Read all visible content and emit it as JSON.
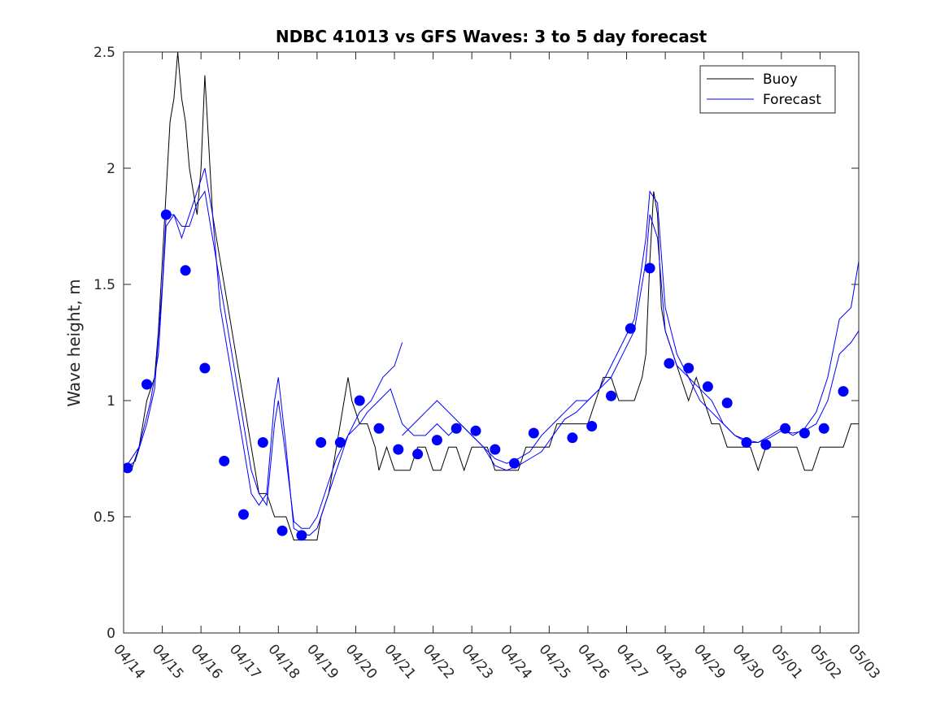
{
  "chart_data": {
    "type": "line",
    "title": "NDBC 41013 vs GFS Waves: 3 to 5 day forecast",
    "ylabel": "Wave height, m",
    "xlabel": "",
    "xlim": [
      0,
      19
    ],
    "ylim": [
      0,
      2.5
    ],
    "yticks": [
      0,
      0.5,
      1,
      1.5,
      2,
      2.5
    ],
    "ytick_labels": [
      "0",
      "0.5",
      "1",
      "1.5",
      "2",
      "2.5"
    ],
    "xtick_labels": [
      "04/14",
      "04/15",
      "04/16",
      "04/17",
      "04/18",
      "04/19",
      "04/20",
      "04/21",
      "04/22",
      "04/23",
      "04/24",
      "04/25",
      "04/26",
      "04/27",
      "04/28",
      "04/29",
      "04/30",
      "05/01",
      "05/02",
      "05/03"
    ],
    "legend_position": "top-right",
    "grid": false,
    "colors": {
      "buoy": "#000000",
      "forecast": "#0000ff",
      "markers": "#0000ff"
    },
    "series": [
      {
        "name": "Buoy",
        "style": "line",
        "points": [
          [
            0.0,
            0.7
          ],
          [
            0.2,
            0.7
          ],
          [
            0.4,
            0.8
          ],
          [
            0.6,
            1.0
          ],
          [
            0.8,
            1.1
          ],
          [
            0.9,
            1.3
          ],
          [
            1.0,
            1.6
          ],
          [
            1.1,
            1.9
          ],
          [
            1.2,
            2.2
          ],
          [
            1.3,
            2.3
          ],
          [
            1.4,
            2.5
          ],
          [
            1.5,
            2.3
          ],
          [
            1.6,
            2.2
          ],
          [
            1.7,
            2.0
          ],
          [
            1.8,
            1.9
          ],
          [
            1.9,
            1.8
          ],
          [
            2.0,
            2.0
          ],
          [
            2.1,
            2.4
          ],
          [
            2.2,
            2.1
          ],
          [
            2.3,
            1.8
          ],
          [
            2.5,
            1.6
          ],
          [
            2.7,
            1.4
          ],
          [
            2.9,
            1.2
          ],
          [
            3.1,
            1.0
          ],
          [
            3.3,
            0.8
          ],
          [
            3.5,
            0.6
          ],
          [
            3.7,
            0.6
          ],
          [
            3.9,
            0.5
          ],
          [
            4.0,
            0.5
          ],
          [
            4.2,
            0.5
          ],
          [
            4.4,
            0.4
          ],
          [
            4.6,
            0.4
          ],
          [
            4.8,
            0.4
          ],
          [
            5.0,
            0.4
          ],
          [
            5.1,
            0.5
          ],
          [
            5.3,
            0.6
          ],
          [
            5.5,
            0.8
          ],
          [
            5.7,
            1.0
          ],
          [
            5.8,
            1.1
          ],
          [
            5.9,
            1.0
          ],
          [
            6.1,
            0.9
          ],
          [
            6.3,
            0.9
          ],
          [
            6.5,
            0.8
          ],
          [
            6.6,
            0.7
          ],
          [
            6.8,
            0.8
          ],
          [
            7.0,
            0.7
          ],
          [
            7.2,
            0.7
          ],
          [
            7.4,
            0.7
          ],
          [
            7.6,
            0.8
          ],
          [
            7.8,
            0.8
          ],
          [
            8.0,
            0.7
          ],
          [
            8.2,
            0.7
          ],
          [
            8.4,
            0.8
          ],
          [
            8.6,
            0.8
          ],
          [
            8.8,
            0.7
          ],
          [
            9.0,
            0.8
          ],
          [
            9.2,
            0.8
          ],
          [
            9.4,
            0.8
          ],
          [
            9.6,
            0.7
          ],
          [
            9.8,
            0.7
          ],
          [
            10.0,
            0.7
          ],
          [
            10.2,
            0.7
          ],
          [
            10.4,
            0.8
          ],
          [
            10.6,
            0.8
          ],
          [
            10.8,
            0.8
          ],
          [
            11.0,
            0.8
          ],
          [
            11.2,
            0.9
          ],
          [
            11.4,
            0.9
          ],
          [
            11.6,
            0.9
          ],
          [
            11.8,
            0.9
          ],
          [
            12.0,
            0.9
          ],
          [
            12.2,
            1.0
          ],
          [
            12.4,
            1.1
          ],
          [
            12.6,
            1.1
          ],
          [
            12.8,
            1.0
          ],
          [
            13.0,
            1.0
          ],
          [
            13.2,
            1.0
          ],
          [
            13.4,
            1.1
          ],
          [
            13.5,
            1.2
          ],
          [
            13.6,
            1.6
          ],
          [
            13.7,
            1.9
          ],
          [
            13.8,
            1.8
          ],
          [
            13.9,
            1.4
          ],
          [
            14.0,
            1.3
          ],
          [
            14.2,
            1.2
          ],
          [
            14.4,
            1.1
          ],
          [
            14.6,
            1.0
          ],
          [
            14.8,
            1.1
          ],
          [
            15.0,
            1.0
          ],
          [
            15.2,
            0.9
          ],
          [
            15.4,
            0.9
          ],
          [
            15.6,
            0.8
          ],
          [
            15.8,
            0.8
          ],
          [
            16.0,
            0.8
          ],
          [
            16.2,
            0.8
          ],
          [
            16.4,
            0.7
          ],
          [
            16.6,
            0.8
          ],
          [
            16.8,
            0.8
          ],
          [
            17.0,
            0.8
          ],
          [
            17.2,
            0.8
          ],
          [
            17.4,
            0.8
          ],
          [
            17.6,
            0.7
          ],
          [
            17.8,
            0.7
          ],
          [
            18.0,
            0.8
          ],
          [
            18.2,
            0.8
          ],
          [
            18.4,
            0.8
          ],
          [
            18.6,
            0.8
          ],
          [
            18.8,
            0.9
          ],
          [
            19.0,
            0.9
          ]
        ]
      },
      {
        "name": "Forecast",
        "style": "line",
        "traces": [
          [
            [
              0.0,
              0.7
            ],
            [
              0.3,
              0.74
            ],
            [
              0.6,
              0.9
            ],
            [
              0.8,
              1.05
            ],
            [
              1.0,
              1.5
            ],
            [
              1.1,
              1.8
            ],
            [
              1.3,
              1.8
            ],
            [
              1.5,
              1.7
            ],
            [
              1.7,
              1.8
            ],
            [
              1.9,
              1.9
            ],
            [
              2.1,
              2.0
            ],
            [
              2.3,
              1.8
            ],
            [
              2.5,
              1.4
            ],
            [
              2.7,
              1.2
            ],
            [
              2.9,
              1.0
            ],
            [
              3.1,
              0.8
            ],
            [
              3.3,
              0.6
            ],
            [
              3.5,
              0.55
            ],
            [
              3.7,
              0.6
            ],
            [
              3.9,
              1.0
            ],
            [
              4.0,
              1.1
            ],
            [
              4.2,
              0.8
            ],
            [
              4.4,
              0.45
            ],
            [
              4.6,
              0.43
            ],
            [
              4.8,
              0.42
            ],
            [
              5.0,
              0.45
            ],
            [
              5.2,
              0.55
            ],
            [
              5.5,
              0.7
            ],
            [
              5.8,
              0.85
            ],
            [
              6.1,
              0.9
            ],
            [
              6.3,
              0.95
            ],
            [
              6.6,
              1.0
            ],
            [
              6.9,
              1.05
            ],
            [
              7.2,
              0.9
            ],
            [
              7.5,
              0.85
            ],
            [
              7.8,
              0.85
            ],
            [
              8.1,
              0.9
            ],
            [
              8.4,
              0.85
            ],
            [
              8.7,
              0.9
            ],
            [
              9.0,
              0.85
            ],
            [
              9.3,
              0.8
            ],
            [
              9.6,
              0.75
            ],
            [
              9.9,
              0.73
            ],
            [
              10.2,
              0.75
            ],
            [
              10.5,
              0.78
            ],
            [
              10.8,
              0.85
            ],
            [
              11.1,
              0.9
            ],
            [
              11.4,
              0.95
            ],
            [
              11.7,
              1.0
            ],
            [
              12.0,
              1.0
            ],
            [
              12.3,
              1.05
            ],
            [
              12.6,
              1.1
            ],
            [
              12.9,
              1.2
            ],
            [
              13.2,
              1.3
            ],
            [
              13.5,
              1.6
            ],
            [
              13.6,
              1.8
            ],
            [
              13.8,
              1.7
            ],
            [
              14.0,
              1.3
            ],
            [
              14.3,
              1.15
            ],
            [
              14.6,
              1.1
            ],
            [
              14.9,
              1.05
            ],
            [
              15.2,
              1.0
            ],
            [
              15.5,
              0.9
            ],
            [
              15.8,
              0.85
            ],
            [
              16.1,
              0.82
            ],
            [
              16.4,
              0.82
            ],
            [
              16.7,
              0.84
            ],
            [
              17.0,
              0.87
            ],
            [
              17.3,
              0.86
            ],
            [
              17.6,
              0.87
            ],
            [
              17.9,
              0.9
            ],
            [
              18.2,
              1.0
            ],
            [
              18.5,
              1.2
            ],
            [
              18.8,
              1.25
            ],
            [
              19.0,
              1.3
            ]
          ],
          [
            [
              0.0,
              0.7
            ],
            [
              0.4,
              0.8
            ],
            [
              0.7,
              1.0
            ],
            [
              0.9,
              1.2
            ],
            [
              1.1,
              1.75
            ],
            [
              1.3,
              1.8
            ],
            [
              1.5,
              1.75
            ],
            [
              1.7,
              1.75
            ],
            [
              1.9,
              1.85
            ],
            [
              2.1,
              1.9
            ],
            [
              2.3,
              1.7
            ],
            [
              2.5,
              1.5
            ],
            [
              2.7,
              1.3
            ],
            [
              2.9,
              1.1
            ],
            [
              3.1,
              0.9
            ],
            [
              3.3,
              0.7
            ],
            [
              3.5,
              0.6
            ],
            [
              3.7,
              0.55
            ],
            [
              3.9,
              0.9
            ],
            [
              4.0,
              1.0
            ],
            [
              4.2,
              0.75
            ],
            [
              4.4,
              0.48
            ],
            [
              4.6,
              0.45
            ],
            [
              4.8,
              0.45
            ],
            [
              5.0,
              0.5
            ],
            [
              5.2,
              0.6
            ],
            [
              5.5,
              0.75
            ],
            [
              5.8,
              0.85
            ],
            [
              6.1,
              0.95
            ],
            [
              6.4,
              1.0
            ],
            [
              6.7,
              1.1
            ],
            [
              7.0,
              1.15
            ],
            [
              7.2,
              1.25
            ]
          ],
          [
            [
              7.2,
              0.85
            ],
            [
              7.5,
              0.9
            ],
            [
              7.8,
              0.95
            ],
            [
              8.1,
              1.0
            ],
            [
              8.4,
              0.95
            ],
            [
              8.7,
              0.9
            ],
            [
              9.0,
              0.85
            ],
            [
              9.3,
              0.8
            ],
            [
              9.6,
              0.72
            ],
            [
              9.9,
              0.7
            ],
            [
              10.2,
              0.72
            ],
            [
              10.5,
              0.75
            ],
            [
              10.8,
              0.78
            ],
            [
              11.1,
              0.85
            ],
            [
              11.4,
              0.92
            ],
            [
              11.7,
              0.95
            ],
            [
              12.0,
              1.0
            ],
            [
              12.3,
              1.05
            ],
            [
              12.6,
              1.15
            ],
            [
              12.9,
              1.25
            ],
            [
              13.2,
              1.35
            ],
            [
              13.5,
              1.7
            ],
            [
              13.6,
              1.9
            ],
            [
              13.8,
              1.85
            ],
            [
              14.0,
              1.4
            ],
            [
              14.3,
              1.2
            ],
            [
              14.6,
              1.1
            ],
            [
              14.9,
              1.0
            ],
            [
              15.2,
              0.95
            ],
            [
              15.5,
              0.9
            ],
            [
              15.8,
              0.85
            ],
            [
              16.1,
              0.83
            ],
            [
              16.4,
              0.82
            ],
            [
              16.7,
              0.85
            ],
            [
              17.0,
              0.88
            ],
            [
              17.3,
              0.85
            ],
            [
              17.6,
              0.88
            ],
            [
              17.9,
              0.95
            ],
            [
              18.2,
              1.1
            ],
            [
              18.5,
              1.35
            ],
            [
              18.8,
              1.4
            ],
            [
              19.0,
              1.6
            ]
          ]
        ]
      },
      {
        "name": "",
        "style": "markers",
        "points": [
          [
            0.1,
            0.71
          ],
          [
            0.6,
            1.07
          ],
          [
            1.1,
            1.8
          ],
          [
            1.6,
            1.56
          ],
          [
            2.1,
            1.14
          ],
          [
            2.6,
            0.74
          ],
          [
            3.1,
            0.51
          ],
          [
            3.6,
            0.82
          ],
          [
            4.1,
            0.44
          ],
          [
            4.6,
            0.42
          ],
          [
            5.1,
            0.82
          ],
          [
            5.6,
            0.82
          ],
          [
            6.1,
            1.0
          ],
          [
            6.6,
            0.88
          ],
          [
            7.1,
            0.79
          ],
          [
            7.6,
            0.77
          ],
          [
            8.1,
            0.83
          ],
          [
            8.6,
            0.88
          ],
          [
            9.1,
            0.87
          ],
          [
            9.6,
            0.79
          ],
          [
            10.1,
            0.73
          ],
          [
            10.6,
            0.86
          ],
          [
            11.6,
            0.84
          ],
          [
            12.1,
            0.89
          ],
          [
            12.6,
            1.02
          ],
          [
            13.1,
            1.31
          ],
          [
            13.6,
            1.57
          ],
          [
            14.1,
            1.16
          ],
          [
            14.6,
            1.14
          ],
          [
            15.1,
            1.06
          ],
          [
            15.6,
            0.99
          ],
          [
            16.1,
            0.82
          ],
          [
            16.6,
            0.81
          ],
          [
            17.1,
            0.88
          ],
          [
            17.6,
            0.86
          ],
          [
            18.1,
            0.88
          ],
          [
            18.6,
            1.04
          ]
        ]
      }
    ]
  }
}
